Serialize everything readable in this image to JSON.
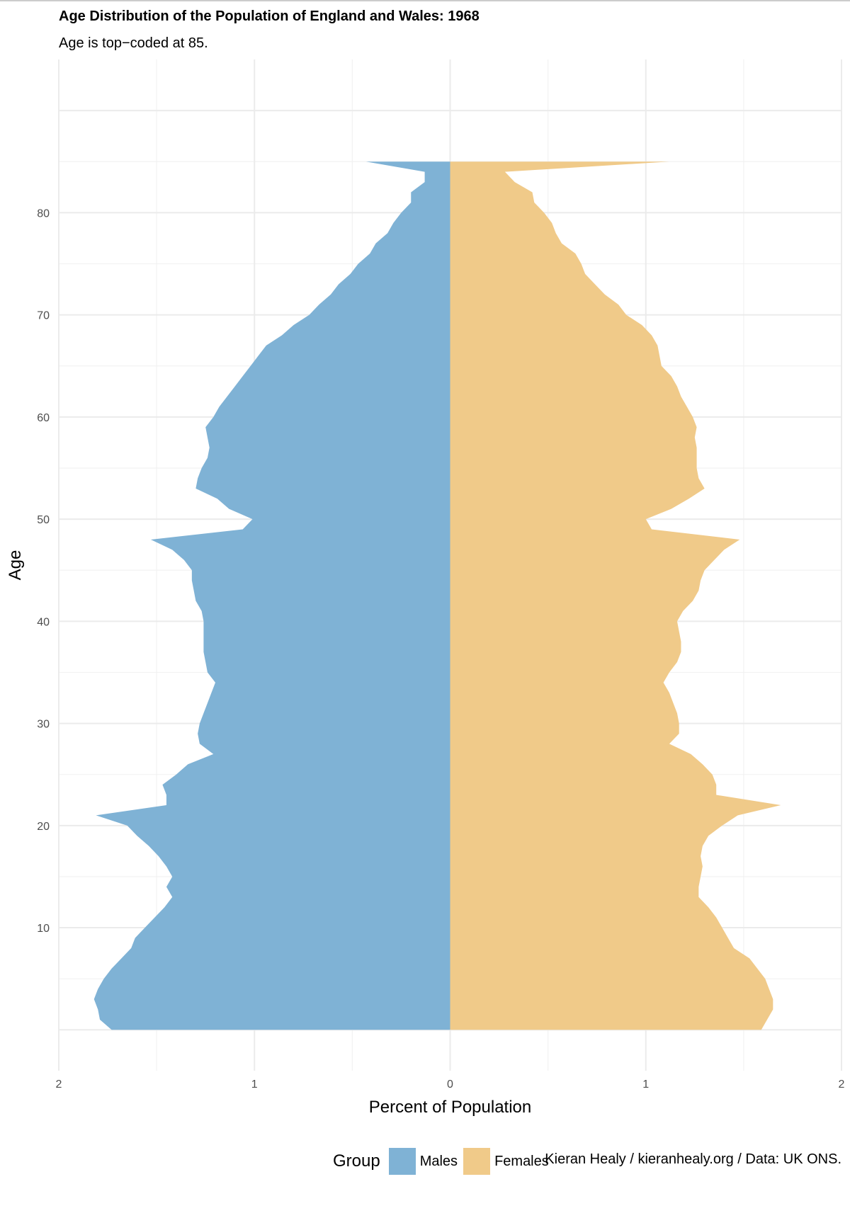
{
  "title": "Age Distribution of the Population of England and Wales: 1968",
  "subtitle": "Age is top−coded at 85.",
  "caption": "Kieran Healy / kieranhealy.org / Data: UK ONS.",
  "legend": {
    "title": "Group",
    "items": [
      {
        "label": "Males",
        "color": "#7FB2D5"
      },
      {
        "label": "Females",
        "color": "#F0CA89"
      }
    ]
  },
  "chart_data": {
    "type": "area",
    "orientation": "horizontal-pyramid",
    "xlabel": "Percent of Population",
    "ylabel": "Age",
    "x_ticks": [
      "2",
      "1",
      "0",
      "1",
      "2"
    ],
    "y_ticks": [
      "10",
      "20",
      "30",
      "40",
      "50",
      "60",
      "70",
      "80"
    ],
    "xlim": [
      -2,
      2
    ],
    "ylim": [
      -4,
      95
    ],
    "grid": true,
    "legend_position": "bottom",
    "ages": [
      0,
      1,
      2,
      3,
      4,
      5,
      6,
      7,
      8,
      9,
      10,
      11,
      12,
      13,
      14,
      15,
      16,
      17,
      18,
      19,
      20,
      21,
      22,
      23,
      24,
      25,
      26,
      27,
      28,
      29,
      30,
      31,
      32,
      33,
      34,
      35,
      36,
      37,
      38,
      39,
      40,
      41,
      42,
      43,
      44,
      45,
      46,
      47,
      48,
      49,
      50,
      51,
      52,
      53,
      54,
      55,
      56,
      57,
      58,
      59,
      60,
      61,
      62,
      63,
      64,
      65,
      66,
      67,
      68,
      69,
      70,
      71,
      72,
      73,
      74,
      75,
      76,
      77,
      78,
      79,
      80,
      81,
      82,
      83,
      84,
      85
    ],
    "series": [
      {
        "name": "Males",
        "color": "#7FB2D5",
        "values": [
          1.73,
          1.79,
          1.8,
          1.82,
          1.8,
          1.77,
          1.73,
          1.68,
          1.63,
          1.61,
          1.56,
          1.51,
          1.46,
          1.42,
          1.45,
          1.42,
          1.45,
          1.49,
          1.54,
          1.6,
          1.65,
          1.81,
          1.45,
          1.45,
          1.47,
          1.4,
          1.34,
          1.21,
          1.28,
          1.29,
          1.28,
          1.26,
          1.24,
          1.22,
          1.2,
          1.24,
          1.25,
          1.26,
          1.26,
          1.26,
          1.26,
          1.27,
          1.3,
          1.31,
          1.32,
          1.32,
          1.36,
          1.42,
          1.53,
          1.06,
          1.01,
          1.13,
          1.19,
          1.3,
          1.29,
          1.27,
          1.24,
          1.23,
          1.24,
          1.25,
          1.21,
          1.18,
          1.14,
          1.1,
          1.06,
          1.02,
          0.98,
          0.94,
          0.86,
          0.8,
          0.72,
          0.67,
          0.61,
          0.57,
          0.51,
          0.47,
          0.41,
          0.38,
          0.32,
          0.29,
          0.25,
          0.2,
          0.2,
          0.13,
          0.13,
          0.43
        ]
      },
      {
        "name": "Females",
        "color": "#F0CA89",
        "values": [
          1.59,
          1.62,
          1.65,
          1.65,
          1.63,
          1.61,
          1.57,
          1.53,
          1.45,
          1.42,
          1.39,
          1.36,
          1.32,
          1.27,
          1.27,
          1.28,
          1.29,
          1.28,
          1.29,
          1.32,
          1.39,
          1.47,
          1.69,
          1.36,
          1.36,
          1.34,
          1.29,
          1.23,
          1.12,
          1.17,
          1.17,
          1.16,
          1.14,
          1.12,
          1.09,
          1.12,
          1.16,
          1.18,
          1.18,
          1.17,
          1.16,
          1.19,
          1.24,
          1.27,
          1.28,
          1.3,
          1.35,
          1.4,
          1.48,
          1.03,
          1.0,
          1.13,
          1.22,
          1.3,
          1.27,
          1.26,
          1.26,
          1.26,
          1.25,
          1.26,
          1.24,
          1.21,
          1.18,
          1.16,
          1.13,
          1.08,
          1.07,
          1.06,
          1.03,
          0.98,
          0.9,
          0.86,
          0.79,
          0.74,
          0.69,
          0.67,
          0.64,
          0.57,
          0.54,
          0.52,
          0.48,
          0.43,
          0.42,
          0.33,
          0.28,
          1.12
        ]
      }
    ]
  }
}
